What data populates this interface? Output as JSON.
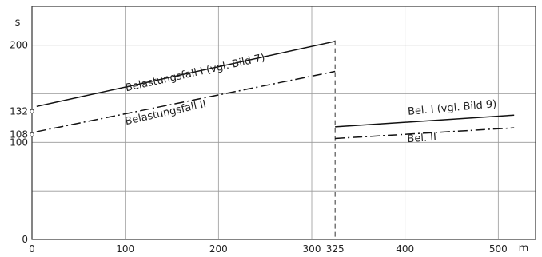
{
  "chart_data": {
    "type": "line",
    "title": "",
    "xlabel": "m",
    "ylabel": "s",
    "xlim": [
      0,
      540
    ],
    "ylim": [
      0,
      240
    ],
    "x_ticks": [
      0,
      100,
      200,
      300,
      325,
      400,
      500
    ],
    "x_tick_labels": [
      "0",
      "100",
      "200",
      "300",
      "325",
      "400",
      "500"
    ],
    "y_ticks": [
      0,
      100,
      108,
      132,
      200
    ],
    "y_tick_labels": [
      "0",
      "100",
      "108",
      "132",
      "200"
    ],
    "grid": true,
    "divider_x": 325,
    "series": [
      {
        "name": "Belastungsfall I (vgl. Bild 7)",
        "style": "solid",
        "x": [
          5,
          325
        ],
        "y": [
          137,
          204
        ]
      },
      {
        "name": "Belastungsfall II",
        "style": "dashdot",
        "x": [
          5,
          325
        ],
        "y": [
          111,
          173
        ]
      },
      {
        "name": "Bel. I (vgl. Bild 9)",
        "style": "solid",
        "x": [
          325,
          517
        ],
        "y": [
          116,
          128
        ]
      },
      {
        "name": "Bel. II",
        "style": "dashdot",
        "x": [
          325,
          517
        ],
        "y": [
          104,
          115
        ]
      }
    ],
    "markers": [
      {
        "x": 0,
        "y": 132
      },
      {
        "x": 0,
        "y": 108
      }
    ]
  }
}
